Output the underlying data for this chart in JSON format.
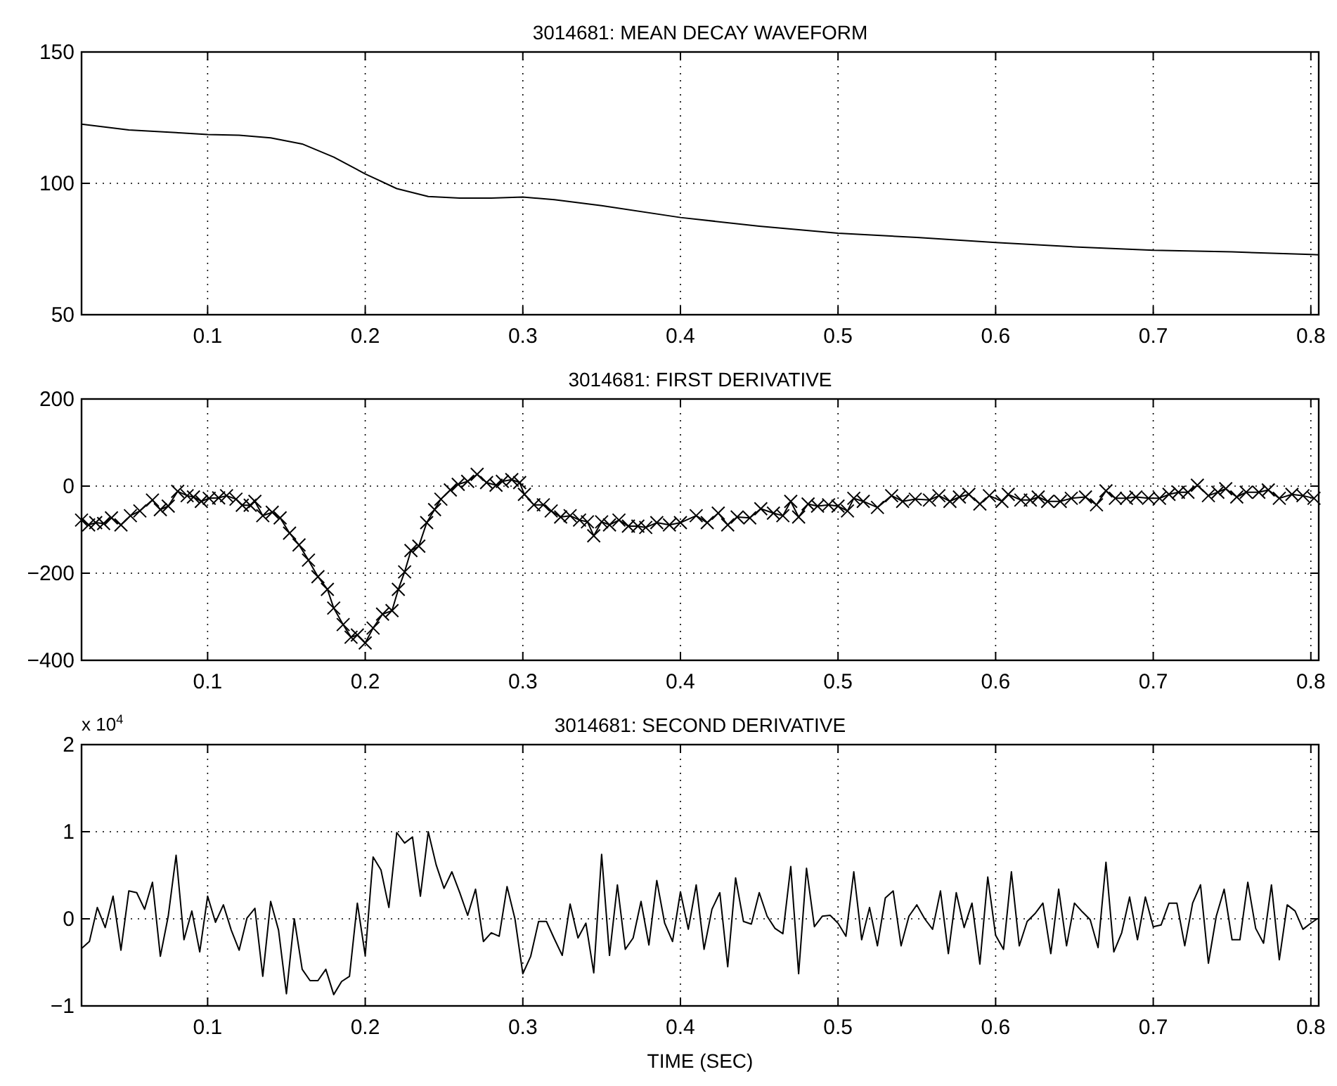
{
  "chart_data": [
    {
      "type": "line",
      "title": "3014681: MEAN DECAY WAVEFORM",
      "color": "#000000",
      "grid": true,
      "x": [
        0.02,
        0.05,
        0.08,
        0.1,
        0.12,
        0.14,
        0.16,
        0.18,
        0.2,
        0.22,
        0.24,
        0.26,
        0.28,
        0.3,
        0.32,
        0.35,
        0.4,
        0.45,
        0.5,
        0.55,
        0.6,
        0.65,
        0.7,
        0.75,
        0.8,
        0.805
      ],
      "values": [
        122.5,
        120.3,
        119.3,
        118.6,
        118.3,
        117.3,
        115,
        110,
        103.6,
        98,
        95,
        94.4,
        94.4,
        94.8,
        93.8,
        91.5,
        87,
        83.7,
        81,
        79.4,
        77.5,
        75.8,
        74.5,
        73.9,
        72.9,
        72.8
      ],
      "xlim": [
        0.02,
        0.805
      ],
      "xticks": [
        0.1,
        0.2,
        0.3,
        0.4,
        0.5,
        0.6,
        0.7,
        0.8
      ],
      "ylim": [
        50,
        150
      ],
      "yticks": [
        50,
        100,
        150
      ]
    },
    {
      "type": "line",
      "title": "3014681: FIRST DERIVATIVE",
      "color": "#000000",
      "grid": true,
      "marker": "cross",
      "x": [
        0.02,
        0.0245,
        0.029,
        0.034,
        0.039,
        0.045,
        0.051,
        0.057,
        0.065,
        0.07,
        0.075,
        0.081,
        0.087,
        0.091,
        0.096,
        0.101,
        0.107,
        0.112,
        0.118,
        0.122,
        0.127,
        0.13,
        0.135,
        0.141,
        0.146,
        0.152,
        0.158,
        0.164,
        0.17,
        0.176,
        0.18,
        0.186,
        0.191,
        0.195,
        0.2,
        0.205,
        0.211,
        0.217,
        0.221,
        0.225,
        0.229,
        0.234,
        0.239,
        0.244,
        0.248,
        0.254,
        0.259,
        0.265,
        0.271,
        0.277,
        0.283,
        0.287,
        0.293,
        0.298,
        0.301,
        0.307,
        0.313,
        0.318,
        0.324,
        0.33,
        0.336,
        0.341,
        0.345,
        0.35,
        0.355,
        0.361,
        0.367,
        0.373,
        0.378,
        0.385,
        0.393,
        0.4,
        0.41,
        0.417,
        0.424,
        0.43,
        0.436,
        0.444,
        0.451,
        0.459,
        0.465,
        0.47,
        0.475,
        0.481,
        0.487,
        0.494,
        0.5,
        0.506,
        0.51,
        0.516,
        0.525,
        0.534,
        0.541,
        0.549,
        0.558,
        0.564,
        0.571,
        0.577,
        0.583,
        0.59,
        0.596,
        0.604,
        0.608,
        0.616,
        0.622,
        0.627,
        0.633,
        0.641,
        0.648,
        0.657,
        0.664,
        0.67,
        0.676,
        0.683,
        0.689,
        0.697,
        0.704,
        0.71,
        0.716,
        0.722,
        0.728,
        0.735,
        0.741,
        0.746,
        0.753,
        0.759,
        0.767,
        0.773,
        0.78,
        0.788,
        0.795,
        0.802
      ],
      "values": [
        -78,
        -89,
        -84,
        -86,
        -73,
        -89,
        -68,
        -57,
        -32,
        -54,
        -46,
        -12,
        -22,
        -25,
        -35,
        -28,
        -27,
        -22,
        -30,
        -44,
        -44,
        -35,
        -68,
        -60,
        -73,
        -108,
        -135,
        -170,
        -208,
        -237,
        -280,
        -318,
        -347,
        -342,
        -360,
        -326,
        -294,
        -286,
        -237,
        -197,
        -148,
        -138,
        -84,
        -54,
        -30,
        -9,
        4,
        11,
        27,
        8,
        2,
        11,
        15,
        8,
        -19,
        -43,
        -43,
        -57,
        -71,
        -68,
        -78,
        -82,
        -114,
        -82,
        -89,
        -78,
        -92,
        -92,
        -95,
        -84,
        -89,
        -84,
        -68,
        -84,
        -62,
        -89,
        -71,
        -73,
        -52,
        -62,
        -68,
        -35,
        -71,
        -41,
        -46,
        -43,
        -46,
        -57,
        -28,
        -35,
        -49,
        -22,
        -35,
        -30,
        -32,
        -22,
        -35,
        -25,
        -19,
        -41,
        -22,
        -35,
        -19,
        -32,
        -32,
        -25,
        -35,
        -35,
        -28,
        -25,
        -43,
        -11,
        -28,
        -28,
        -25,
        -28,
        -28,
        -19,
        -14,
        -14,
        2,
        -22,
        -14,
        -6,
        -25,
        -14,
        -14,
        -9,
        -28,
        -19,
        -22,
        -28
      ],
      "xlim": [
        0.02,
        0.805
      ],
      "xticks": [
        0.1,
        0.2,
        0.3,
        0.4,
        0.5,
        0.6,
        0.7,
        0.8
      ],
      "ylim": [
        -400,
        200
      ],
      "yticks": [
        -400,
        -200,
        0,
        200
      ]
    },
    {
      "type": "line",
      "title": "3014681: SECOND DERIVATIVE",
      "xlabel": "TIME (SEC)",
      "annotations": [
        "x 10$^{4}$"
      ],
      "color": "#000000",
      "grid": true,
      "x": [
        0.02,
        0.025,
        0.03,
        0.035,
        0.04,
        0.045,
        0.05,
        0.055,
        0.06,
        0.065,
        0.07,
        0.075,
        0.08,
        0.085,
        0.09,
        0.095,
        0.1,
        0.105,
        0.11,
        0.115,
        0.12,
        0.125,
        0.13,
        0.135,
        0.14,
        0.145,
        0.15,
        0.155,
        0.16,
        0.165,
        0.17,
        0.175,
        0.18,
        0.185,
        0.19,
        0.195,
        0.2,
        0.205,
        0.21,
        0.215,
        0.22,
        0.225,
        0.23,
        0.235,
        0.24,
        0.245,
        0.25,
        0.255,
        0.26,
        0.265,
        0.27,
        0.275,
        0.28,
        0.285,
        0.29,
        0.295,
        0.3,
        0.305,
        0.31,
        0.315,
        0.32,
        0.325,
        0.33,
        0.335,
        0.34,
        0.345,
        0.35,
        0.355,
        0.36,
        0.365,
        0.37,
        0.375,
        0.38,
        0.385,
        0.39,
        0.395,
        0.4,
        0.405,
        0.41,
        0.415,
        0.42,
        0.425,
        0.43,
        0.435,
        0.44,
        0.445,
        0.45,
        0.455,
        0.46,
        0.465,
        0.47,
        0.475,
        0.48,
        0.485,
        0.49,
        0.495,
        0.5,
        0.505,
        0.51,
        0.515,
        0.52,
        0.525,
        0.53,
        0.535,
        0.54,
        0.545,
        0.55,
        0.555,
        0.56,
        0.565,
        0.57,
        0.575,
        0.58,
        0.585,
        0.59,
        0.595,
        0.6,
        0.605,
        0.61,
        0.615,
        0.62,
        0.625,
        0.63,
        0.635,
        0.64,
        0.645,
        0.65,
        0.655,
        0.66,
        0.665,
        0.67,
        0.675,
        0.68,
        0.685,
        0.69,
        0.695,
        0.7,
        0.705,
        0.71,
        0.715,
        0.72,
        0.725,
        0.73,
        0.735,
        0.74,
        0.745,
        0.75,
        0.755,
        0.76,
        0.765,
        0.77,
        0.775,
        0.78,
        0.785,
        0.79,
        0.795,
        0.8,
        0.804
      ],
      "values": [
        -0.34,
        -0.26,
        0.13,
        -0.1,
        0.26,
        -0.36,
        0.32,
        0.3,
        0.11,
        0.42,
        -0.43,
        0.03,
        0.73,
        -0.24,
        0.09,
        -0.38,
        0.26,
        -0.04,
        0.16,
        -0.13,
        -0.36,
        0.01,
        0.12,
        -0.66,
        0.2,
        -0.13,
        -0.86,
        0,
        -0.58,
        -0.71,
        -0.71,
        -0.58,
        -0.87,
        -0.72,
        -0.66,
        0.18,
        -0.42,
        0.71,
        0.56,
        0.13,
        0.99,
        0.87,
        0.94,
        0.26,
        1,
        0.62,
        0.35,
        0.54,
        0.3,
        0.04,
        0.34,
        -0.26,
        -0.16,
        -0.2,
        0.37,
        0,
        -0.63,
        -0.43,
        -0.03,
        -0.03,
        -0.23,
        -0.42,
        0.17,
        -0.22,
        -0.05,
        -0.62,
        0.74,
        -0.42,
        0.39,
        -0.35,
        -0.22,
        0.2,
        -0.3,
        0.44,
        -0.05,
        -0.26,
        0.31,
        -0.12,
        0.39,
        -0.35,
        0.11,
        0.3,
        -0.55,
        0.47,
        -0.03,
        -0.06,
        0.3,
        0.03,
        -0.11,
        -0.17,
        0.6,
        -0.63,
        0.58,
        -0.09,
        0.03,
        0.04,
        -0.05,
        -0.2,
        0.54,
        -0.24,
        0.13,
        -0.31,
        0.24,
        0.32,
        -0.31,
        0.03,
        0.16,
        0,
        -0.12,
        0.32,
        -0.4,
        0.3,
        -0.1,
        0.18,
        -0.52,
        0.48,
        -0.19,
        -0.35,
        0.54,
        -0.31,
        -0.03,
        0.06,
        0.18,
        -0.4,
        0.34,
        -0.31,
        0.18,
        0.08,
        -0.01,
        -0.33,
        0.65,
        -0.38,
        -0.16,
        0.25,
        -0.24,
        0.25,
        -0.09,
        -0.07,
        0.18,
        0.18,
        -0.31,
        0.18,
        0.39,
        -0.51,
        0.03,
        0.34,
        -0.24,
        -0.24,
        0.42,
        -0.11,
        -0.28,
        0.39,
        -0.47,
        0.16,
        0.09,
        -0.12,
        -0.05,
        0
      ],
      "xlim": [
        0.02,
        0.805
      ],
      "xticks": [
        0.1,
        0.2,
        0.3,
        0.4,
        0.5,
        0.6,
        0.7,
        0.8
      ],
      "ylim": [
        -1,
        2
      ],
      "yticks": [
        -1,
        0,
        1,
        2
      ]
    }
  ]
}
